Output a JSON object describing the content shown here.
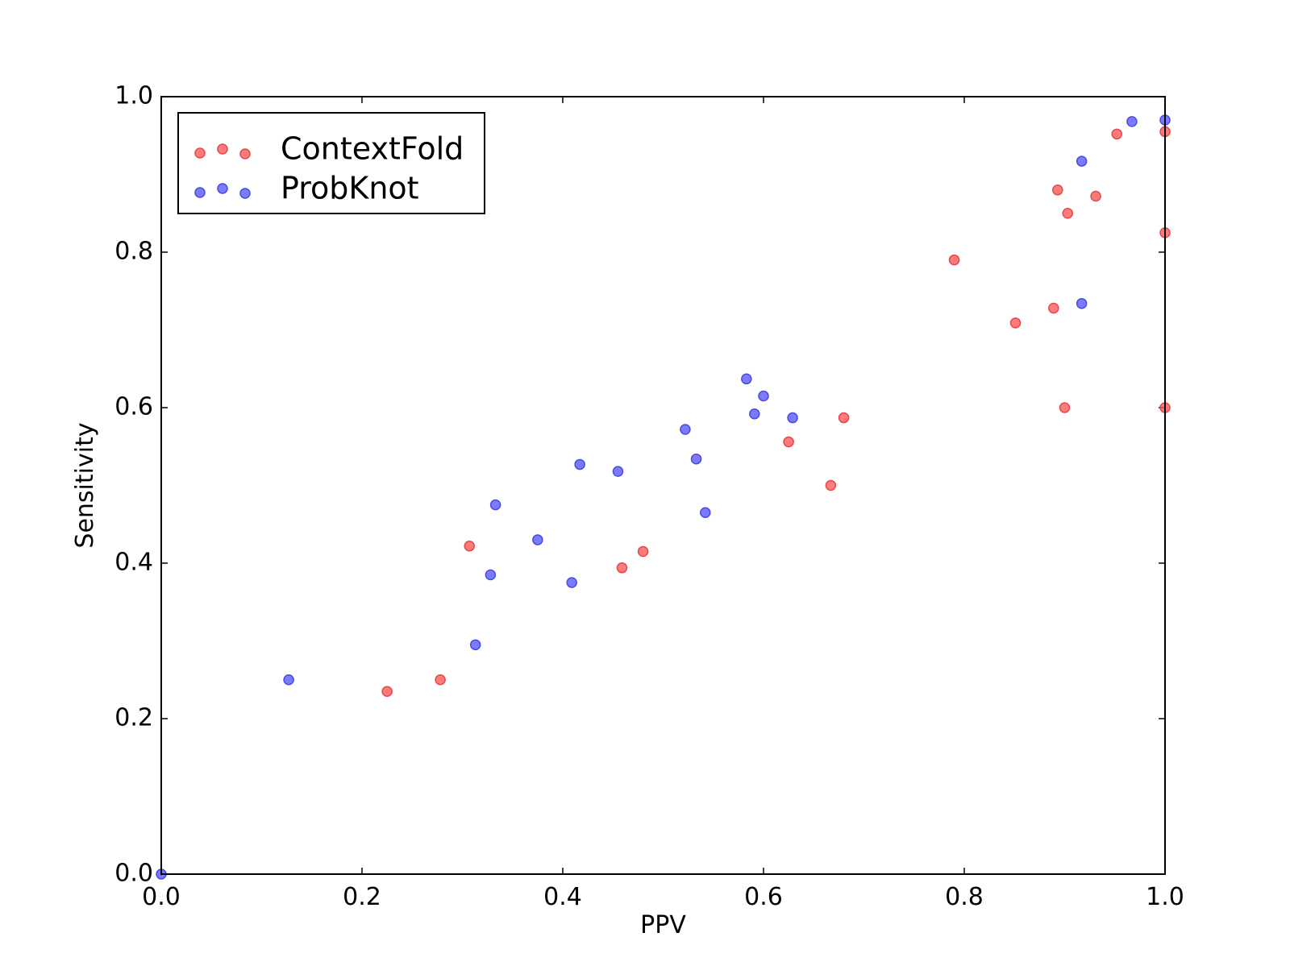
{
  "chart_data": {
    "type": "scatter",
    "xlabel": "PPV",
    "ylabel": "Sensitivity",
    "xlim": [
      0.0,
      1.0
    ],
    "ylim": [
      0.0,
      1.0
    ],
    "xticks": [
      "0.0",
      "0.2",
      "0.4",
      "0.6",
      "0.8",
      "1.0"
    ],
    "yticks": [
      "0.0",
      "0.2",
      "0.4",
      "0.6",
      "0.8",
      "1.0"
    ],
    "grid": false,
    "legend_position": "top-left",
    "series": [
      {
        "name": "ContextFold",
        "color": "#ff5a5a",
        "edge_color": "#e04a4a",
        "points": [
          [
            0.225,
            0.235
          ],
          [
            0.278,
            0.25
          ],
          [
            0.307,
            0.422
          ],
          [
            0.459,
            0.394
          ],
          [
            0.48,
            0.415
          ],
          [
            0.625,
            0.556
          ],
          [
            0.667,
            0.5
          ],
          [
            0.68,
            0.587
          ],
          [
            0.79,
            0.79
          ],
          [
            0.851,
            0.709
          ],
          [
            0.889,
            0.728
          ],
          [
            0.893,
            0.88
          ],
          [
            0.9,
            0.6
          ],
          [
            0.903,
            0.85
          ],
          [
            0.931,
            0.872
          ],
          [
            0.952,
            0.952
          ],
          [
            1.0,
            0.955
          ],
          [
            1.0,
            0.825
          ],
          [
            1.0,
            0.6
          ]
        ]
      },
      {
        "name": "ProbKnot",
        "color": "#5a5aff",
        "edge_color": "#4a4ae0",
        "points": [
          [
            0.0,
            0.0
          ],
          [
            0.127,
            0.25
          ],
          [
            0.313,
            0.295
          ],
          [
            0.328,
            0.385
          ],
          [
            0.333,
            0.475
          ],
          [
            0.375,
            0.43
          ],
          [
            0.409,
            0.375
          ],
          [
            0.417,
            0.527
          ],
          [
            0.455,
            0.518
          ],
          [
            0.522,
            0.572
          ],
          [
            0.533,
            0.534
          ],
          [
            0.542,
            0.465
          ],
          [
            0.583,
            0.637
          ],
          [
            0.591,
            0.592
          ],
          [
            0.6,
            0.615
          ],
          [
            0.629,
            0.587
          ],
          [
            0.917,
            0.917
          ],
          [
            0.917,
            0.734
          ],
          [
            0.967,
            0.968
          ],
          [
            1.0,
            0.97
          ]
        ]
      }
    ]
  }
}
